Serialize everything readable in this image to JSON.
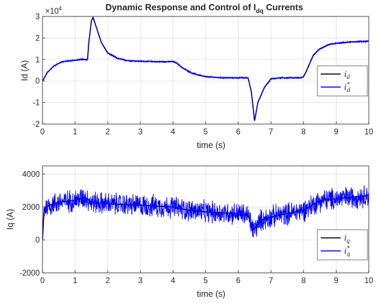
{
  "chart_data": [
    {
      "type": "line",
      "title_main": "Dynamic Response and Control of I",
      "title_sub": "dq",
      "title_tail": " Currents",
      "xlabel": "time (s)",
      "ylabel": "Id (A)",
      "exponent_label": "×10",
      "exponent_power": "4",
      "xlim": [
        0,
        10
      ],
      "ylim": [
        -2,
        3
      ],
      "xticks": [
        0,
        1,
        2,
        3,
        4,
        5,
        6,
        7,
        8,
        9,
        10
      ],
      "yticks": [
        -2,
        -1,
        0,
        1,
        2,
        3
      ],
      "grid": true,
      "legend_position": "right",
      "series": [
        {
          "name": "i_d",
          "legend_main": "i",
          "legend_sub": "d",
          "legend_sup": "",
          "color": "#000000",
          "x": [
            0,
            0.15,
            0.35,
            0.6,
            0.9,
            1.2,
            1.38,
            1.42,
            1.5,
            1.55,
            1.65,
            1.8,
            2.0,
            2.3,
            2.6,
            3.0,
            3.5,
            4.0,
            4.1,
            4.3,
            4.6,
            5.0,
            5.5,
            6.0,
            6.3,
            6.4,
            6.5,
            6.6,
            6.8,
            7.0,
            7.3,
            7.6,
            7.9,
            8.0,
            8.1,
            8.3,
            8.5,
            8.8,
            9.0,
            9.5,
            10.0
          ],
          "y": [
            0.0,
            0.4,
            0.7,
            0.9,
            0.95,
            1.0,
            1.0,
            1.8,
            2.8,
            2.95,
            2.5,
            1.8,
            1.3,
            1.05,
            0.95,
            0.92,
            0.9,
            0.9,
            0.85,
            0.6,
            0.35,
            0.2,
            0.15,
            0.15,
            0.15,
            -0.5,
            -1.85,
            -1.0,
            -0.3,
            0.1,
            0.15,
            0.15,
            0.15,
            0.2,
            0.5,
            1.2,
            1.5,
            1.7,
            1.75,
            1.82,
            1.85
          ]
        },
        {
          "name": "i_d*",
          "legend_main": "i",
          "legend_sub": "d",
          "legend_sup": "*",
          "color": "#0000ff",
          "x": [
            0,
            0.15,
            0.35,
            0.6,
            0.9,
            1.2,
            1.38,
            1.42,
            1.5,
            1.55,
            1.65,
            1.8,
            2.0,
            2.3,
            2.6,
            3.0,
            3.5,
            4.0,
            4.1,
            4.3,
            4.6,
            5.0,
            5.5,
            6.0,
            6.3,
            6.4,
            6.5,
            6.6,
            6.8,
            7.0,
            7.3,
            7.6,
            7.9,
            8.0,
            8.1,
            8.3,
            8.5,
            8.8,
            9.0,
            9.5,
            10.0
          ],
          "y": [
            0.0,
            0.4,
            0.7,
            0.9,
            0.95,
            1.0,
            1.0,
            1.8,
            2.8,
            2.95,
            2.5,
            1.8,
            1.3,
            1.05,
            0.95,
            0.92,
            0.9,
            0.9,
            0.85,
            0.6,
            0.35,
            0.2,
            0.15,
            0.15,
            0.15,
            -0.5,
            -1.85,
            -1.0,
            -0.3,
            0.1,
            0.15,
            0.15,
            0.15,
            0.2,
            0.5,
            1.2,
            1.5,
            1.7,
            1.75,
            1.82,
            1.85
          ],
          "noise_amplitude": 0.05
        }
      ]
    },
    {
      "type": "line",
      "xlabel": "time (s)",
      "ylabel": "Iq (A)",
      "xlim": [
        0,
        10
      ],
      "ylim": [
        -2000,
        4500
      ],
      "xticks": [
        0,
        1,
        2,
        3,
        4,
        5,
        6,
        7,
        8,
        9,
        10
      ],
      "yticks": [
        -2000,
        0,
        2000,
        4000
      ],
      "grid": true,
      "legend_position": "bottom-right",
      "series": [
        {
          "name": "i_q",
          "legend_main": "i",
          "legend_sub": "q",
          "legend_sup": "",
          "color": "#000000",
          "x": [
            0,
            0.05,
            0.2,
            0.5,
            1.0,
            1.3,
            1.5,
            2.0,
            3.0,
            4.0,
            4.5,
            5.0,
            6.0,
            6.3,
            6.45,
            6.55,
            6.7,
            7.0,
            7.5,
            8.0,
            8.5,
            9.0,
            9.5,
            10.0
          ],
          "y": [
            0,
            1900,
            2100,
            2300,
            2400,
            2600,
            2300,
            2200,
            2100,
            2000,
            1800,
            1700,
            1600,
            1500,
            600,
            800,
            1200,
            1400,
            1600,
            1800,
            2400,
            2500,
            2600,
            2700
          ]
        },
        {
          "name": "i_q*",
          "legend_main": "i",
          "legend_sub": "q",
          "legend_sup": "*",
          "color": "#0000ff",
          "x": [
            0,
            0.05,
            0.2,
            0.5,
            1.0,
            1.3,
            1.5,
            2.0,
            3.0,
            4.0,
            4.5,
            5.0,
            6.0,
            6.3,
            6.45,
            6.55,
            6.7,
            7.0,
            7.5,
            8.0,
            8.5,
            9.0,
            9.5,
            10.0
          ],
          "y": [
            0,
            1900,
            2100,
            2300,
            2400,
            2600,
            2300,
            2200,
            2100,
            2000,
            1800,
            1700,
            1600,
            1500,
            600,
            800,
            1200,
            1400,
            1600,
            1800,
            2400,
            2500,
            2600,
            2700
          ],
          "noise_amplitude": 800
        }
      ]
    }
  ]
}
